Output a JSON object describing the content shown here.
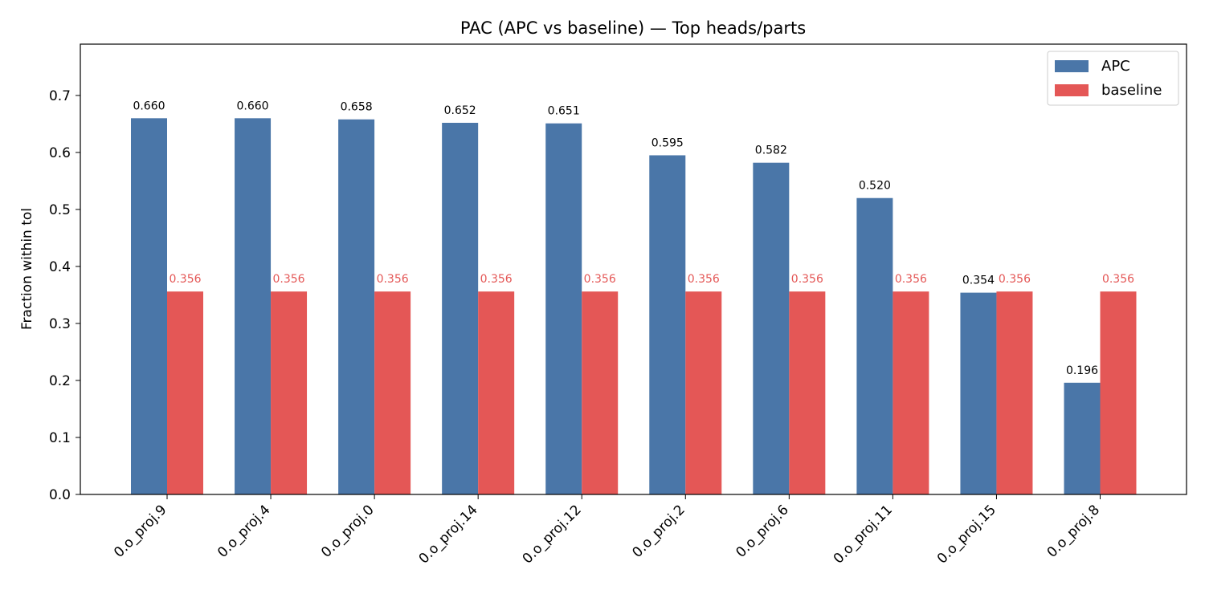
{
  "chart_data": {
    "type": "bar",
    "title": "PAC (APC vs baseline) — Top heads/parts",
    "xlabel": "",
    "ylabel": "Fraction within tol",
    "ylim": [
      0,
      0.79
    ],
    "yticks": [
      "0.0",
      "0.1",
      "0.2",
      "0.3",
      "0.4",
      "0.5",
      "0.6",
      "0.7"
    ],
    "categories": [
      "0.o_proj.9",
      "0.o_proj.4",
      "0.o_proj.0",
      "0.o_proj.14",
      "0.o_proj.12",
      "0.o_proj.2",
      "0.o_proj.6",
      "0.o_proj.11",
      "0.o_proj.15",
      "0.o_proj.8"
    ],
    "series": [
      {
        "name": "APC",
        "color": "#4a76a8",
        "label_color": "#000000",
        "values": [
          0.66,
          0.66,
          0.658,
          0.652,
          0.651,
          0.595,
          0.582,
          0.52,
          0.354,
          0.196
        ],
        "labels": [
          "0.660",
          "0.660",
          "0.658",
          "0.652",
          "0.651",
          "0.595",
          "0.582",
          "0.520",
          "0.354",
          "0.196"
        ]
      },
      {
        "name": "baseline",
        "color": "#e45756",
        "label_color": "#e45756",
        "values": [
          0.356,
          0.356,
          0.356,
          0.356,
          0.356,
          0.356,
          0.356,
          0.356,
          0.356,
          0.356
        ],
        "labels": [
          "0.356",
          "0.356",
          "0.356",
          "0.356",
          "0.356",
          "0.356",
          "0.356",
          "0.356",
          "0.356",
          "0.356"
        ]
      }
    ],
    "legend_position": "top-right",
    "grid": false
  }
}
